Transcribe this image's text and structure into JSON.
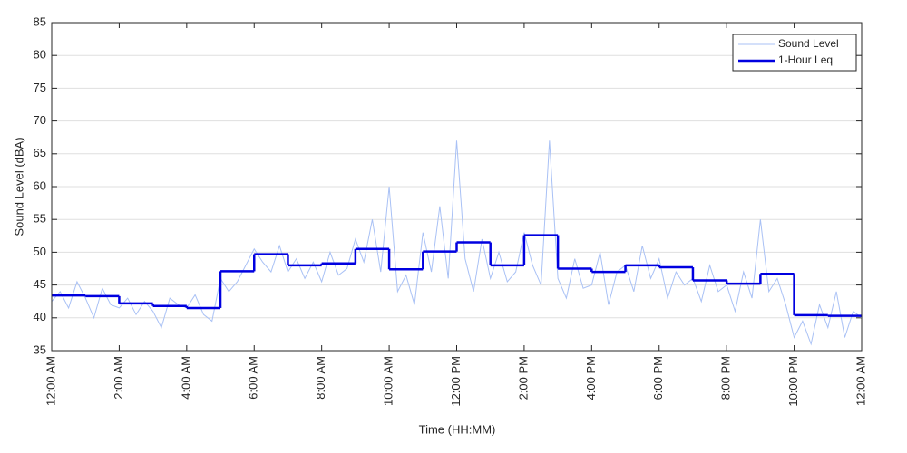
{
  "chart_data": {
    "type": "line",
    "xlabel": "Time (HH:MM)",
    "ylabel": "Sound Level (dBA)",
    "xlim": [
      0,
      24
    ],
    "ylim": [
      35,
      85
    ],
    "xticks": [
      {
        "value": 0,
        "label": "12:00 AM"
      },
      {
        "value": 2,
        "label": "2:00 AM"
      },
      {
        "value": 4,
        "label": "4:00 AM"
      },
      {
        "value": 6,
        "label": "6:00 AM"
      },
      {
        "value": 8,
        "label": "8:00 AM"
      },
      {
        "value": 10,
        "label": "10:00 AM"
      },
      {
        "value": 12,
        "label": "12:00 PM"
      },
      {
        "value": 14,
        "label": "2:00 PM"
      },
      {
        "value": 16,
        "label": "4:00 PM"
      },
      {
        "value": 18,
        "label": "6:00 PM"
      },
      {
        "value": 20,
        "label": "8:00 PM"
      },
      {
        "value": 22,
        "label": "10:00 PM"
      },
      {
        "value": 24,
        "label": "12:00 AM"
      }
    ],
    "yticks": [
      35,
      40,
      45,
      50,
      55,
      60,
      65,
      70,
      75,
      80,
      85
    ],
    "grid": true,
    "legend": "upper right",
    "series": [
      {
        "name": "Sound Level",
        "color": "#a9c1f5",
        "width": 1,
        "x": [
          0,
          0.25,
          0.5,
          0.75,
          1,
          1.25,
          1.5,
          1.75,
          2,
          2.25,
          2.5,
          2.75,
          3,
          3.25,
          3.5,
          3.75,
          4,
          4.25,
          4.5,
          4.75,
          5,
          5.25,
          5.5,
          5.75,
          6,
          6.25,
          6.5,
          6.75,
          7,
          7.25,
          7.5,
          7.75,
          8,
          8.25,
          8.5,
          8.75,
          9,
          9.25,
          9.5,
          9.75,
          10,
          10.25,
          10.5,
          10.75,
          11,
          11.25,
          11.5,
          11.75,
          12,
          12.25,
          12.5,
          12.75,
          13,
          13.25,
          13.5,
          13.75,
          14,
          14.25,
          14.5,
          14.75,
          15,
          15.25,
          15.5,
          15.75,
          16,
          16.25,
          16.5,
          16.75,
          17,
          17.25,
          17.5,
          17.75,
          18,
          18.25,
          18.5,
          18.75,
          19,
          19.25,
          19.5,
          19.75,
          20,
          20.25,
          20.5,
          20.75,
          21,
          21.25,
          21.5,
          21.75,
          22,
          22.25,
          22.5,
          22.75,
          23,
          23.25,
          23.5,
          23.75,
          24
        ],
        "values": [
          42.5,
          44,
          41.5,
          45.5,
          43,
          40,
          44.5,
          42,
          41.5,
          43,
          40.5,
          42.5,
          41,
          38.5,
          43,
          42,
          41.5,
          43.5,
          40.5,
          39.5,
          46,
          44,
          45.5,
          48,
          50.5,
          48.5,
          47,
          51,
          47,
          49,
          46,
          48.5,
          45.5,
          50,
          46.5,
          47.5,
          52,
          48.5,
          55,
          47,
          60,
          44,
          46.5,
          42,
          53,
          47,
          57,
          46,
          67,
          49,
          44,
          52,
          46,
          50,
          45.5,
          47,
          53,
          48,
          45,
          67,
          46,
          43,
          49,
          44.5,
          45,
          50,
          42,
          47,
          48,
          44,
          51,
          46,
          49,
          43,
          47,
          45,
          46,
          42.5,
          48,
          44,
          45,
          41,
          47,
          43,
          55,
          44,
          46,
          42,
          37,
          39.5,
          36,
          42,
          38.5,
          44,
          37,
          41,
          40
        ]
      },
      {
        "name": "1-Hour Leq",
        "color": "#0000e0",
        "width": 2.5,
        "step": "post",
        "x": [
          0,
          1,
          2,
          3,
          4,
          5,
          6,
          7,
          8,
          9,
          10,
          11,
          12,
          13,
          14,
          15,
          16,
          17,
          18,
          19,
          20,
          21,
          22,
          23
        ],
        "values": [
          43.4,
          43.3,
          42.2,
          41.8,
          41.5,
          47.1,
          49.7,
          48.0,
          48.3,
          50.5,
          47.4,
          50.1,
          51.5,
          48.0,
          52.6,
          47.5,
          47.0,
          48.0,
          47.7,
          45.7,
          45.2,
          46.7,
          40.4,
          40.3
        ]
      }
    ]
  }
}
